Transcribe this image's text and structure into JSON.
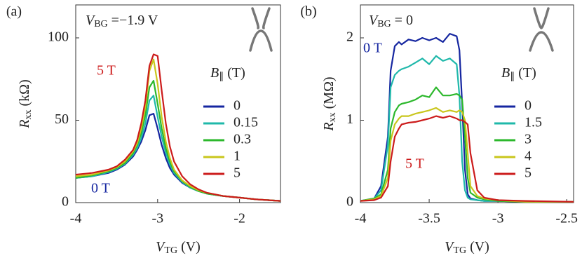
{
  "chart_data": [
    {
      "type": "line",
      "panel_label": "(a)",
      "annotation": {
        "italic": "V",
        "sub": "BG",
        "rest": " =−1.9 V"
      },
      "x_label": {
        "italic": "V",
        "sub": "TG",
        "rest": " (V)"
      },
      "y_label": {
        "italic": "R",
        "sub": "xx",
        "rest": " (kΩ)"
      },
      "legend_title": {
        "italic": "B",
        "sub": "∥",
        "rest": " (T)"
      },
      "legend": "right",
      "curve_labels": [
        {
          "text": "5 T",
          "color": "#cc1b1b"
        },
        {
          "text": "0 T",
          "color": "#1526a0"
        }
      ],
      "xlim": [
        -4,
        -1.5
      ],
      "ylim": [
        0,
        120
      ],
      "xticks": [
        -4,
        -3,
        -2
      ],
      "yticks": [
        0,
        50,
        100
      ],
      "x": [
        -4,
        -3.8,
        -3.6,
        -3.5,
        -3.4,
        -3.3,
        -3.25,
        -3.2,
        -3.15,
        -3.1,
        -3.05,
        -3.0,
        -2.95,
        -2.9,
        -2.85,
        -2.8,
        -2.7,
        -2.6,
        -2.5,
        -2.4,
        -2.2,
        -2.0,
        -1.8,
        -1.5
      ],
      "series": [
        {
          "name": "0",
          "color": "#1526a0",
          "values": [
            15,
            16,
            18,
            20,
            23,
            28,
            32,
            37,
            44,
            53,
            54,
            45,
            35,
            27,
            21,
            17,
            12,
            9,
            7,
            5.5,
            4,
            3,
            2,
            1
          ]
        },
        {
          "name": "0.15",
          "color": "#1fb8aa",
          "values": [
            15,
            16,
            18.5,
            20.5,
            23.5,
            29,
            33,
            39,
            48,
            62,
            65,
            52,
            40,
            30,
            23,
            18,
            12.5,
            9,
            7,
            5.5,
            4,
            3,
            2,
            1
          ]
        },
        {
          "name": "0.3",
          "color": "#2cb82c",
          "values": [
            15,
            16.5,
            19,
            21,
            24,
            30,
            35,
            42,
            53,
            70,
            74,
            60,
            45,
            33,
            25,
            19,
            13,
            9.5,
            7,
            5.5,
            4,
            3,
            2,
            1
          ]
        },
        {
          "name": "1",
          "color": "#c9c61c",
          "values": [
            16,
            17,
            19.5,
            21.5,
            25,
            31,
            36,
            45,
            58,
            80,
            87,
            72,
            52,
            37,
            27,
            20,
            13.5,
            10,
            7.5,
            6,
            4,
            3,
            2,
            1
          ]
        },
        {
          "name": "5",
          "color": "#cc1b1b",
          "values": [
            17,
            18,
            20,
            22,
            26,
            32,
            38,
            48,
            62,
            83,
            90,
            89,
            68,
            48,
            34,
            25,
            16,
            11,
            8,
            6,
            4,
            3,
            2,
            1
          ]
        }
      ]
    },
    {
      "type": "line",
      "panel_label": "(b)",
      "annotation": {
        "italic": "V",
        "sub": "BG",
        "rest": " = 0"
      },
      "x_label": {
        "italic": "V",
        "sub": "TG",
        "rest": " (V)"
      },
      "y_label": {
        "italic": "R",
        "sub": "xx",
        "rest": " (MΩ)"
      },
      "legend_title": {
        "italic": "B",
        "sub": "∥",
        "rest": " (T)"
      },
      "legend": "right",
      "curve_labels": [
        {
          "text": "0 T",
          "color": "#1526a0"
        },
        {
          "text": "5 T",
          "color": "#cc1b1b"
        }
      ],
      "xlim": [
        -4,
        -2.45
      ],
      "ylim": [
        0,
        2.4
      ],
      "xticks": [
        -4,
        -3.5,
        -3,
        -2.5
      ],
      "yticks": [
        0,
        1,
        2
      ],
      "x": [
        -4,
        -3.9,
        -3.85,
        -3.8,
        -3.78,
        -3.75,
        -3.72,
        -3.7,
        -3.65,
        -3.6,
        -3.55,
        -3.5,
        -3.45,
        -3.4,
        -3.35,
        -3.3,
        -3.28,
        -3.26,
        -3.24,
        -3.22,
        -3.2,
        -3.15,
        -3.1,
        -3.0,
        -2.8,
        -2.45
      ],
      "series": [
        {
          "name": "0",
          "color": "#1526a0",
          "values": [
            0.02,
            0.05,
            0.2,
            0.8,
            1.6,
            1.9,
            1.95,
            1.92,
            1.98,
            1.96,
            2.0,
            1.97,
            2.0,
            1.95,
            2.05,
            2.02,
            1.85,
            1.2,
            0.4,
            0.1,
            0.05,
            0.03,
            0.02,
            0.02,
            0.01,
            0.01
          ]
        },
        {
          "name": "1.5",
          "color": "#1fb8aa",
          "values": [
            0.02,
            0.05,
            0.15,
            0.7,
            1.4,
            1.55,
            1.6,
            1.62,
            1.65,
            1.7,
            1.75,
            1.68,
            1.78,
            1.72,
            1.75,
            1.68,
            1.3,
            0.5,
            0.15,
            0.06,
            0.04,
            0.03,
            0.02,
            0.02,
            0.01,
            0.01
          ]
        },
        {
          "name": "3",
          "color": "#2cb82c",
          "values": [
            0.02,
            0.05,
            0.1,
            0.4,
            0.9,
            1.1,
            1.18,
            1.2,
            1.22,
            1.25,
            1.3,
            1.28,
            1.4,
            1.3,
            1.3,
            1.32,
            1.3,
            1.25,
            0.8,
            0.3,
            0.12,
            0.06,
            0.04,
            0.02,
            0.01,
            0.01
          ]
        },
        {
          "name": "4",
          "color": "#c9c61c",
          "values": [
            0.02,
            0.04,
            0.08,
            0.3,
            0.75,
            0.95,
            1.02,
            1.05,
            1.05,
            1.08,
            1.1,
            1.12,
            1.15,
            1.1,
            1.12,
            1.1,
            1.12,
            1.1,
            1.0,
            0.6,
            0.2,
            0.08,
            0.05,
            0.03,
            0.01,
            0.01
          ]
        },
        {
          "name": "5",
          "color": "#cc1b1b",
          "values": [
            0.02,
            0.03,
            0.06,
            0.2,
            0.5,
            0.8,
            0.9,
            0.95,
            0.97,
            0.98,
            1.0,
            1.02,
            1.05,
            1.03,
            1.05,
            1.02,
            1.0,
            1.0,
            0.98,
            0.95,
            0.6,
            0.15,
            0.06,
            0.03,
            0.02,
            0.01
          ]
        }
      ]
    }
  ]
}
